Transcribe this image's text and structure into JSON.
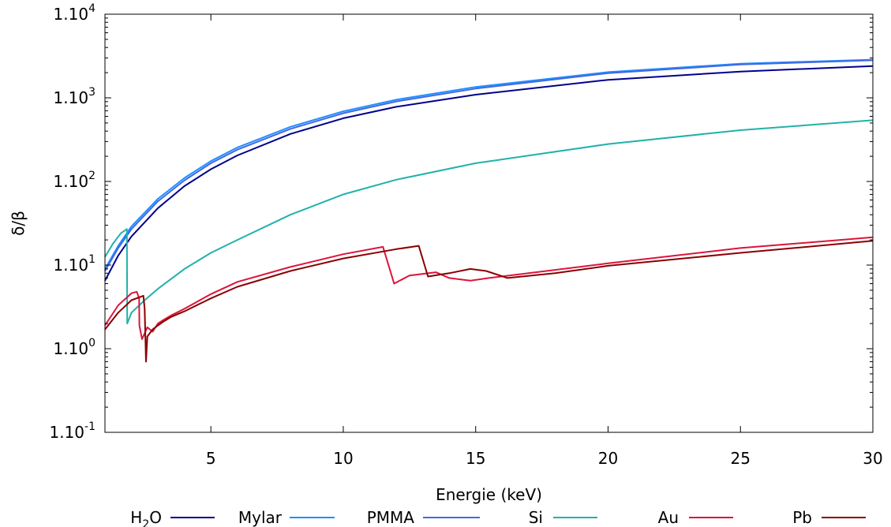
{
  "chart_data": {
    "type": "line",
    "title": "",
    "xlabel": "Energie (keV)",
    "ylabel": "δ/β",
    "xlim": [
      1,
      30
    ],
    "ylim": [
      0.1,
      10000
    ],
    "yscale": "log",
    "xticks": [
      5,
      10,
      15,
      20,
      25,
      30
    ],
    "yticks": [
      {
        "value": 10000,
        "base": "1.10",
        "exp": "4"
      },
      {
        "value": 1000,
        "base": "1.10",
        "exp": "3"
      },
      {
        "value": 100,
        "base": "1.10",
        "exp": "2"
      },
      {
        "value": 10,
        "base": "1.10",
        "exp": "1"
      },
      {
        "value": 1,
        "base": "1.10",
        "exp": "0"
      },
      {
        "value": 0.1,
        "base": "1.10",
        "exp": "-1"
      }
    ],
    "grid": false,
    "legend_position": "bottom",
    "series": [
      {
        "name": "H2O",
        "label_main": "H",
        "label_sub": "2",
        "label_tail": "O",
        "color": "#00008b",
        "x": [
          1,
          1.5,
          2,
          3,
          4,
          5,
          6,
          8,
          10,
          12,
          15,
          20,
          25,
          30
        ],
        "y": [
          6.5,
          13,
          22,
          48,
          88,
          140,
          205,
          370,
          570,
          780,
          1090,
          1640,
          2060,
          2400
        ]
      },
      {
        "name": "Mylar",
        "color": "#1e90ff",
        "x": [
          1,
          1.5,
          2,
          3,
          4,
          5,
          6,
          8,
          10,
          12,
          15,
          20,
          25,
          30
        ],
        "y": [
          9,
          17,
          29,
          62,
          110,
          175,
          255,
          450,
          690,
          950,
          1350,
          2030,
          2560,
          2860
        ]
      },
      {
        "name": "PMMA",
        "color": "#4169e1",
        "x": [
          1,
          1.5,
          2,
          3,
          4,
          5,
          6,
          8,
          10,
          12,
          15,
          20,
          25,
          30
        ],
        "y": [
          8.5,
          16,
          27,
          58,
          103,
          165,
          240,
          425,
          655,
          905,
          1290,
          1970,
          2500,
          2810
        ]
      },
      {
        "name": "Si",
        "color": "#20b2aa",
        "x": [
          1,
          1.3,
          1.6,
          1.83,
          1.84,
          2,
          2.5,
          3,
          4,
          5,
          6,
          8,
          10,
          12,
          15,
          20,
          25,
          30
        ],
        "y": [
          12.5,
          18,
          24,
          27,
          2,
          2.7,
          3.8,
          5.2,
          9,
          14,
          20,
          40,
          70,
          105,
          165,
          280,
          410,
          540
        ]
      },
      {
        "name": "Au",
        "color": "#dc143c",
        "x": [
          1,
          1.5,
          2,
          2.2,
          2.29,
          2.3,
          2.4,
          2.6,
          2.8,
          3,
          3.2,
          3.5,
          4,
          5,
          6,
          8,
          10,
          11.5,
          11.92,
          12.5,
          13.5,
          14,
          14.8,
          15.5,
          17,
          20,
          25,
          30
        ],
        "y": [
          1.9,
          3.3,
          4.6,
          4.8,
          4.0,
          1.9,
          1.3,
          1.8,
          1.6,
          2.0,
          2.2,
          2.5,
          3.0,
          4.5,
          6.3,
          9.5,
          13.5,
          16.5,
          6.0,
          7.5,
          8.2,
          7.0,
          6.5,
          7.0,
          8.0,
          10.5,
          16.0,
          21.5
        ]
      },
      {
        "name": "Pb",
        "color": "#8b0000",
        "x": [
          1,
          1.5,
          2,
          2.45,
          2.5,
          2.55,
          2.6,
          2.8,
          3,
          3.2,
          3.5,
          4,
          5,
          6,
          8,
          10,
          12,
          12.85,
          13.2,
          14,
          14.8,
          15.4,
          16.2,
          18,
          20,
          25,
          30
        ],
        "y": [
          1.7,
          2.7,
          3.8,
          4.3,
          3.0,
          0.7,
          1.4,
          1.7,
          1.9,
          2.1,
          2.4,
          2.8,
          4.0,
          5.5,
          8.5,
          12.0,
          15.5,
          17.0,
          7.3,
          8.0,
          9.0,
          8.5,
          7.0,
          8.0,
          9.8,
          14.0,
          19.5
        ]
      }
    ]
  }
}
